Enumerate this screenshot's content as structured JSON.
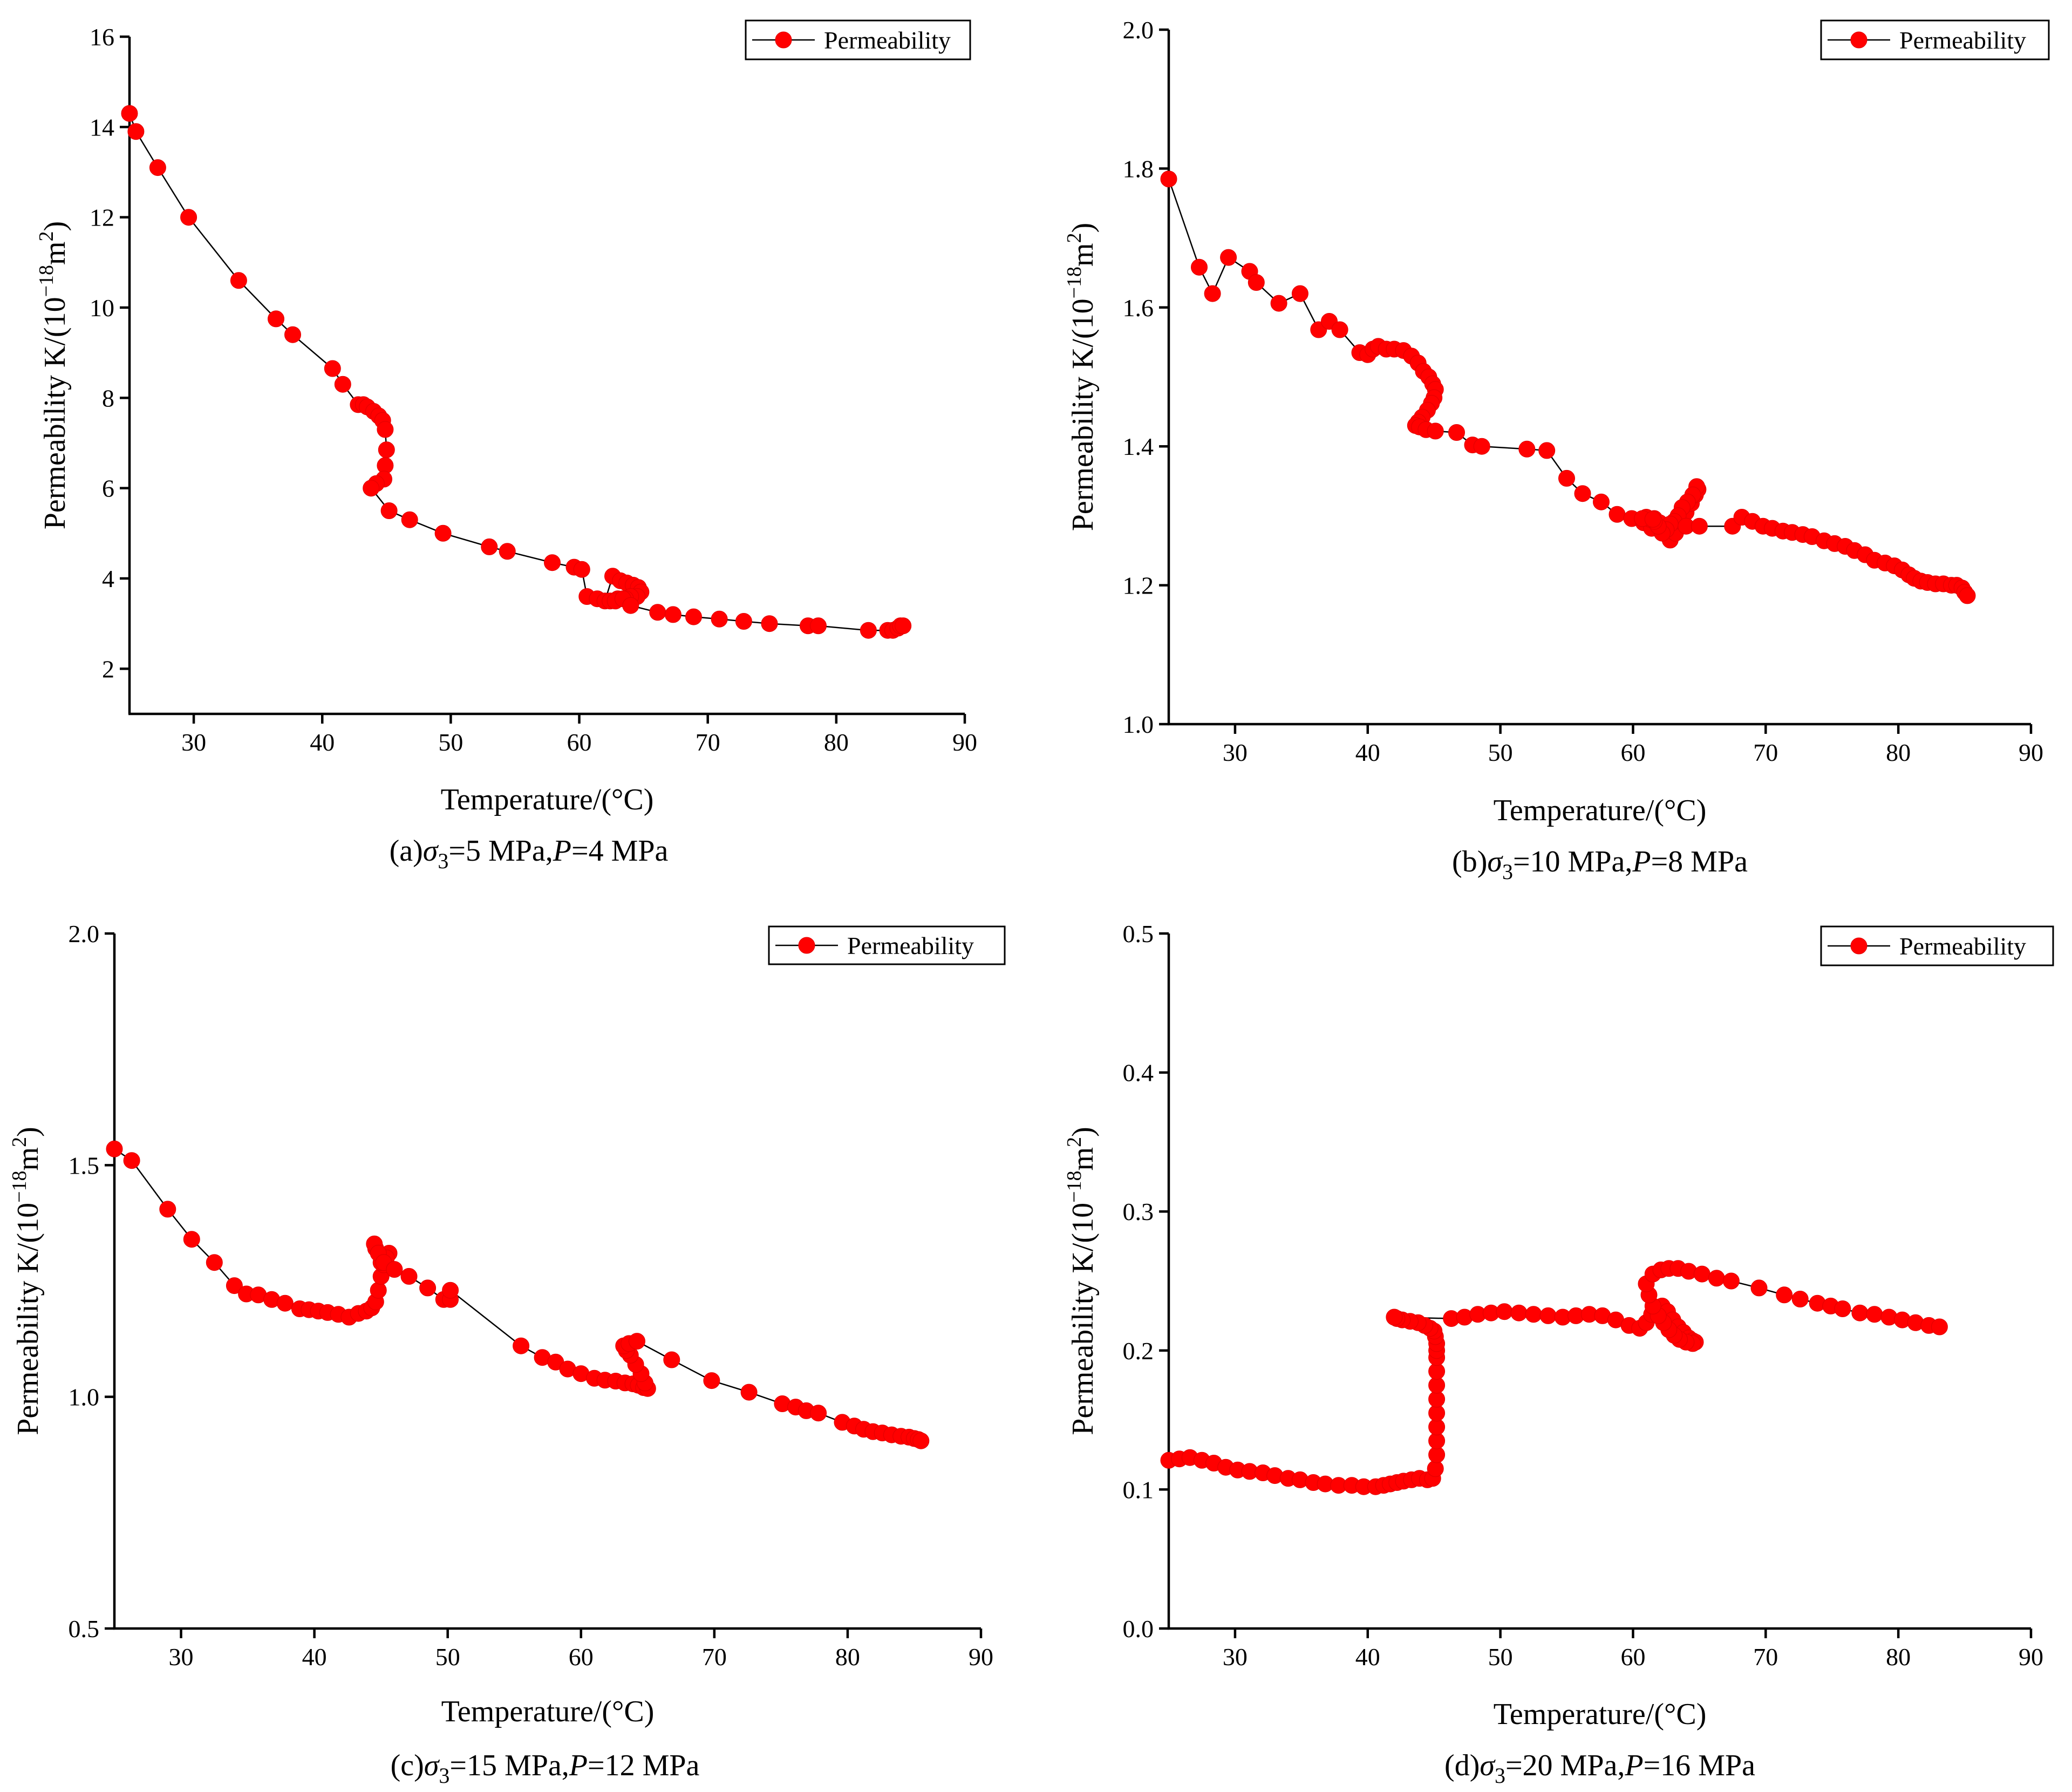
{
  "chart_data": [
    {
      "id": "a",
      "type": "line",
      "series_name": "Permeability",
      "legend": "Permeability",
      "xlabel": "Temperature/(°C)",
      "ylabel_main": "Permeability K/(10",
      "ylabel_exp": "−18",
      "ylabel_unit": "m",
      "ylabel_unit_exp": "2",
      "ylabel_close": ")",
      "xlim": [
        25,
        90
      ],
      "ylim": [
        1,
        16
      ],
      "xticks": [
        30,
        40,
        50,
        60,
        70,
        80,
        90
      ],
      "yticks": [
        2,
        4,
        6,
        8,
        10,
        12,
        14,
        16
      ],
      "caption": {
        "prefix": "(a)",
        "sigma": "σ",
        "sub": "3",
        "mid": "=5 MPa,",
        "p": "P",
        "suffix": "=4 MPa"
      },
      "x": [
        25.0,
        25.5,
        27.2,
        29.6,
        33.5,
        36.4,
        37.7,
        40.8,
        41.6,
        42.8,
        43.2,
        43.5,
        44.0,
        44.4,
        44.7,
        44.9,
        45.0,
        44.9,
        44.8,
        44.2,
        43.8,
        45.2,
        46.8,
        49.4,
        53.0,
        54.4,
        57.9,
        59.6,
        60.2,
        60.6,
        61.4,
        62.0,
        62.6,
        63.2,
        63.7,
        64.2,
        64.6,
        64.8,
        64.5,
        64.0,
        63.6,
        63.0,
        62.4,
        62.8,
        63.4,
        64.0,
        66.1,
        67.3,
        68.9,
        70.9,
        72.8,
        74.8,
        77.8,
        78.6,
        82.5,
        84.0,
        84.4,
        84.8,
        85.0,
        85.2
      ],
      "y": [
        14.3,
        13.9,
        13.1,
        12.0,
        10.6,
        9.75,
        9.4,
        8.65,
        8.3,
        7.85,
        7.85,
        7.8,
        7.7,
        7.6,
        7.5,
        7.3,
        6.85,
        6.5,
        6.2,
        6.1,
        6.0,
        5.5,
        5.3,
        5.0,
        4.7,
        4.6,
        4.35,
        4.25,
        4.2,
        3.6,
        3.55,
        3.5,
        4.05,
        3.95,
        3.9,
        3.85,
        3.8,
        3.7,
        3.6,
        3.6,
        3.55,
        3.55,
        3.5,
        3.5,
        3.55,
        3.4,
        3.25,
        3.2,
        3.15,
        3.1,
        3.05,
        3.0,
        2.95,
        2.95,
        2.85,
        2.85,
        2.85,
        2.9,
        2.95,
        2.95
      ]
    },
    {
      "id": "b",
      "type": "line",
      "series_name": "Permeability",
      "legend": "Permeability",
      "xlabel": "Temperature/(°C)",
      "ylabel_main": "Permeability K/(10",
      "ylabel_exp": "−18",
      "ylabel_unit": "m",
      "ylabel_unit_exp": "2",
      "ylabel_close": ")",
      "xlim": [
        25,
        90
      ],
      "ylim": [
        1.0,
        2.0
      ],
      "xticks": [
        30,
        40,
        50,
        60,
        70,
        80,
        90
      ],
      "yticks": [
        1.0,
        1.2,
        1.4,
        1.6,
        1.8,
        2.0
      ],
      "caption": {
        "prefix": "(b)",
        "sigma": "σ",
        "sub": "3",
        "mid": "=10 MPa,",
        "p": "P",
        "suffix": "=8 MPa"
      },
      "x": [
        25.0,
        27.3,
        28.3,
        29.5,
        31.1,
        31.6,
        33.3,
        34.9,
        36.3,
        37.1,
        37.9,
        39.4,
        40.0,
        40.4,
        40.8,
        41.4,
        42.0,
        42.7,
        43.3,
        43.8,
        44.2,
        44.6,
        44.9,
        45.1,
        45.0,
        44.8,
        44.5,
        44.1,
        43.8,
        43.6,
        43.9,
        44.4,
        45.1,
        46.7,
        47.9,
        48.6,
        52.0,
        53.5,
        55.0,
        56.2,
        57.6,
        58.8,
        59.9,
        60.8,
        61.4,
        61.6,
        62.0,
        62.4,
        62.8,
        63.2,
        63.6,
        64.0,
        64.4,
        64.7,
        64.9,
        64.8,
        64.5,
        64.1,
        63.7,
        63.4,
        63.1,
        62.8,
        62.5,
        62.2,
        61.9,
        61.6,
        61.3,
        61.0,
        60.7,
        61.5,
        64.0,
        65.0,
        67.5,
        68.2,
        69.0,
        69.8,
        70.5,
        71.3,
        72.0,
        72.8,
        73.5,
        74.4,
        75.2,
        76.0,
        76.7,
        77.5,
        78.2,
        79.0,
        79.7,
        80.3,
        80.8,
        81.2,
        81.7,
        82.2,
        82.8,
        83.4,
        84.0,
        84.4,
        84.8,
        85.0,
        85.2
      ],
      "y": [
        1.785,
        1.658,
        1.62,
        1.672,
        1.652,
        1.636,
        1.606,
        1.62,
        1.568,
        1.58,
        1.568,
        1.535,
        1.532,
        1.54,
        1.544,
        1.54,
        1.54,
        1.538,
        1.53,
        1.52,
        1.508,
        1.5,
        1.49,
        1.482,
        1.47,
        1.462,
        1.452,
        1.442,
        1.435,
        1.43,
        1.428,
        1.424,
        1.422,
        1.42,
        1.402,
        1.4,
        1.396,
        1.394,
        1.354,
        1.332,
        1.32,
        1.302,
        1.296,
        1.29,
        1.282,
        1.296,
        1.29,
        1.278,
        1.265,
        1.275,
        1.292,
        1.305,
        1.318,
        1.33,
        1.338,
        1.342,
        1.33,
        1.32,
        1.312,
        1.3,
        1.292,
        1.288,
        1.28,
        1.275,
        1.285,
        1.292,
        1.295,
        1.298,
        1.296,
        1.295,
        1.285,
        1.285,
        1.285,
        1.298,
        1.292,
        1.285,
        1.282,
        1.278,
        1.276,
        1.273,
        1.27,
        1.264,
        1.26,
        1.256,
        1.25,
        1.244,
        1.236,
        1.232,
        1.228,
        1.222,
        1.215,
        1.21,
        1.206,
        1.204,
        1.202,
        1.202,
        1.2,
        1.2,
        1.196,
        1.19,
        1.185
      ]
    },
    {
      "id": "c",
      "type": "line",
      "series_name": "Permeability",
      "legend": "Permeability",
      "xlabel": "Temperature/(°C)",
      "ylabel_main": "Permeability K/(10",
      "ylabel_exp": "−18",
      "ylabel_unit": "m",
      "ylabel_unit_exp": "2",
      "ylabel_close": ")",
      "xlim": [
        25,
        90
      ],
      "ylim": [
        0.5,
        2.0
      ],
      "xticks": [
        30,
        40,
        50,
        60,
        70,
        80,
        90
      ],
      "yticks": [
        0.5,
        1.0,
        1.5,
        2.0
      ],
      "caption": {
        "prefix": "(c)",
        "sigma": "σ",
        "sub": "3",
        "mid": "=15 MPa,",
        "p": "P",
        "suffix": "=12 MPa"
      },
      "x": [
        25.0,
        26.3,
        29.0,
        30.8,
        32.5,
        34.0,
        34.9,
        35.8,
        36.8,
        37.8,
        38.9,
        39.6,
        40.3,
        41.0,
        41.8,
        42.6,
        43.3,
        43.9,
        44.3,
        44.6,
        44.8,
        45.0,
        45.2,
        45.4,
        45.6,
        45.4,
        45.0,
        44.6,
        44.5,
        44.8,
        45.2,
        46.0,
        47.1,
        48.5,
        49.7,
        50.2,
        50.2,
        55.5,
        57.1,
        58.1,
        59.0,
        60.0,
        61.0,
        61.8,
        62.6,
        63.3,
        63.9,
        64.3,
        64.7,
        65.0,
        64.8,
        64.5,
        64.1,
        63.7,
        63.4,
        63.2,
        63.6,
        64.2,
        66.8,
        69.8,
        72.6,
        75.1,
        76.1,
        76.9,
        77.8,
        79.6,
        80.5,
        81.2,
        81.9,
        82.6,
        83.3,
        84.0,
        84.6,
        85.0,
        85.3,
        85.5
      ],
      "y": [
        1.535,
        1.51,
        1.405,
        1.34,
        1.29,
        1.24,
        1.222,
        1.22,
        1.21,
        1.202,
        1.19,
        1.188,
        1.185,
        1.182,
        1.178,
        1.172,
        1.18,
        1.185,
        1.192,
        1.205,
        1.23,
        1.26,
        1.285,
        1.3,
        1.31,
        1.3,
        1.29,
        1.32,
        1.33,
        1.31,
        1.29,
        1.275,
        1.26,
        1.235,
        1.21,
        1.21,
        1.23,
        1.11,
        1.085,
        1.075,
        1.06,
        1.05,
        1.04,
        1.036,
        1.034,
        1.03,
        1.028,
        1.025,
        1.02,
        1.018,
        1.03,
        1.05,
        1.07,
        1.09,
        1.1,
        1.11,
        1.115,
        1.12,
        1.08,
        1.035,
        1.01,
        0.985,
        0.978,
        0.97,
        0.965,
        0.945,
        0.937,
        0.93,
        0.925,
        0.922,
        0.918,
        0.915,
        0.913,
        0.91,
        0.908,
        0.905
      ]
    },
    {
      "id": "d",
      "type": "line",
      "series_name": "Permeability",
      "legend": "Permeability",
      "xlabel": "Temperature/(°C)",
      "ylabel_main": "Permeability K/(10",
      "ylabel_exp": "−18",
      "ylabel_unit": "m",
      "ylabel_unit_exp": "2",
      "ylabel_close": ")",
      "xlim": [
        25,
        90
      ],
      "ylim": [
        0.0,
        0.5
      ],
      "xticks": [
        30,
        40,
        50,
        60,
        70,
        80,
        90
      ],
      "yticks": [
        0.0,
        0.1,
        0.2,
        0.3,
        0.4,
        0.5
      ],
      "caption": {
        "prefix": "(d)",
        "sigma": "σ",
        "sub": "3",
        "mid": "=20 MPa,",
        "p": "P",
        "suffix": "=16 MPa"
      },
      "x": [
        25.0,
        25.8,
        26.6,
        27.5,
        28.4,
        29.3,
        30.2,
        31.1,
        32.1,
        33.0,
        34.0,
        34.9,
        35.9,
        36.8,
        37.8,
        38.8,
        39.7,
        40.6,
        41.2,
        41.7,
        42.2,
        42.7,
        43.3,
        43.9,
        44.5,
        44.9,
        45.1,
        45.2,
        45.2,
        45.2,
        45.2,
        45.2,
        45.2,
        45.2,
        45.2,
        45.2,
        45.2,
        45.1,
        45.0,
        44.7,
        44.3,
        43.8,
        43.2,
        42.6,
        42.2,
        42.0,
        46.3,
        47.3,
        48.3,
        49.3,
        50.3,
        51.4,
        52.5,
        53.6,
        54.7,
        55.7,
        56.7,
        57.7,
        58.7,
        59.7,
        60.5,
        61.0,
        61.4,
        61.8,
        62.2,
        62.6,
        63.0,
        63.4,
        63.8,
        64.2,
        64.5,
        64.7,
        64.5,
        64.0,
        63.5,
        63.1,
        62.7,
        62.3,
        61.9,
        61.5,
        61.2,
        61.0,
        61.5,
        62.1,
        62.7,
        63.4,
        64.2,
        65.2,
        66.3,
        67.4,
        69.5,
        71.4,
        72.6,
        73.9,
        74.9,
        75.8,
        77.1,
        78.2,
        79.3,
        80.3,
        81.3,
        82.3,
        83.1
      ],
      "y": [
        0.121,
        0.122,
        0.123,
        0.121,
        0.119,
        0.116,
        0.114,
        0.113,
        0.112,
        0.11,
        0.108,
        0.107,
        0.105,
        0.104,
        0.103,
        0.103,
        0.102,
        0.102,
        0.103,
        0.104,
        0.105,
        0.106,
        0.107,
        0.108,
        0.107,
        0.108,
        0.115,
        0.125,
        0.135,
        0.145,
        0.155,
        0.165,
        0.175,
        0.185,
        0.195,
        0.2,
        0.205,
        0.21,
        0.214,
        0.216,
        0.218,
        0.22,
        0.221,
        0.222,
        0.223,
        0.224,
        0.223,
        0.224,
        0.226,
        0.227,
        0.228,
        0.227,
        0.226,
        0.225,
        0.224,
        0.225,
        0.226,
        0.225,
        0.222,
        0.218,
        0.216,
        0.22,
        0.226,
        0.23,
        0.232,
        0.228,
        0.222,
        0.217,
        0.213,
        0.209,
        0.207,
        0.206,
        0.205,
        0.206,
        0.208,
        0.211,
        0.215,
        0.22,
        0.225,
        0.232,
        0.24,
        0.248,
        0.255,
        0.258,
        0.259,
        0.259,
        0.257,
        0.255,
        0.252,
        0.25,
        0.245,
        0.24,
        0.237,
        0.234,
        0.232,
        0.23,
        0.227,
        0.226,
        0.224,
        0.222,
        0.22,
        0.218,
        0.217
      ]
    }
  ],
  "colors": {
    "marker": "#ff0000",
    "line": "#000000",
    "axis": "#000000"
  }
}
